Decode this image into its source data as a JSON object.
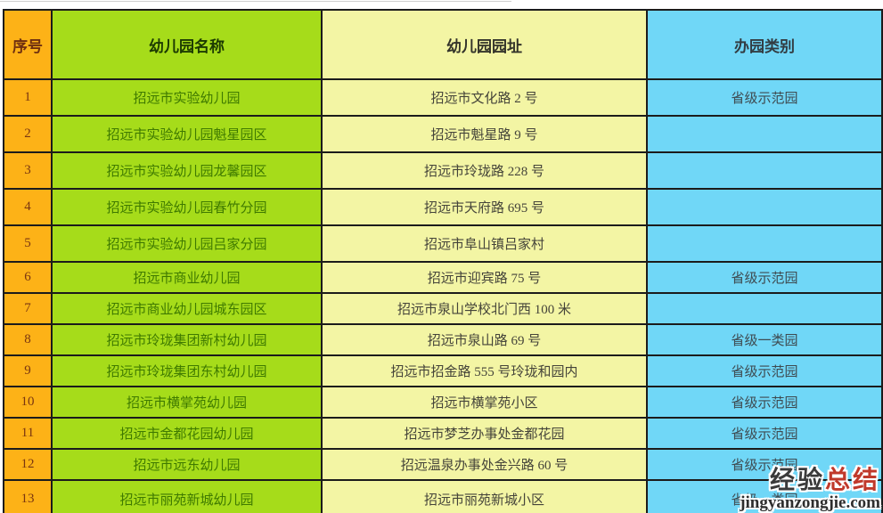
{
  "table": {
    "headers": [
      {
        "key": "no",
        "label": "序号"
      },
      {
        "key": "name",
        "label": "幼儿园名称"
      },
      {
        "key": "address",
        "label": "幼儿园园址"
      },
      {
        "key": "type",
        "label": "办园类别"
      }
    ],
    "rows": [
      {
        "no": "1",
        "name": "招远市实验幼儿园",
        "address": "招远市文化路 2 号",
        "type": "省级示范园"
      },
      {
        "no": "2",
        "name": "招远市实验幼儿园魁星园区",
        "address": "招远市魁星路 9 号",
        "type": ""
      },
      {
        "no": "3",
        "name": "招远市实验幼儿园龙馨园区",
        "address": "招远市玲珑路 228 号",
        "type": ""
      },
      {
        "no": "4",
        "name": "招远市实验幼儿园春竹分园",
        "address": "招远市天府路 695 号",
        "type": ""
      },
      {
        "no": "5",
        "name": "招远市实验幼儿园吕家分园",
        "address": "招远市阜山镇吕家村",
        "type": ""
      },
      {
        "no": "6",
        "name": "招远市商业幼儿园",
        "address": "招远市迎宾路 75 号",
        "type": "省级示范园"
      },
      {
        "no": "7",
        "name": "招远市商业幼儿园城东园区",
        "address": "招远市泉山学校北门西 100 米",
        "type": ""
      },
      {
        "no": "8",
        "name": "招远市玲珑集团新村幼儿园",
        "address": "招远市泉山路 69 号",
        "type": "省级一类园"
      },
      {
        "no": "9",
        "name": "招远市玲珑集团东村幼儿园",
        "address": "招远市招金路 555 号玲珑和园内",
        "type": "省级示范园"
      },
      {
        "no": "10",
        "name": "招远市横掌苑幼儿园",
        "address": "招远市横掌苑小区",
        "type": "省级示范园"
      },
      {
        "no": "11",
        "name": "招远市金都花园幼儿园",
        "address": "招远市梦芝办事处金都花园",
        "type": "省级示范园"
      },
      {
        "no": "12",
        "name": "招远市远东幼儿园",
        "address": "招远温泉办事处金兴路 60 号",
        "type": "省级示范园"
      },
      {
        "no": "13",
        "name": "招远市丽苑新城幼儿园",
        "address": "招远市丽苑新城小区",
        "type": "省级一类园"
      }
    ]
  },
  "watermark": {
    "title_part1": "经验",
    "title_part2": "总结",
    "url": "jingyanzongjie.com"
  },
  "colors": {
    "serial_bg": "#FDB217",
    "name_bg": "#A6DC1A",
    "address_bg": "#F3F5A4",
    "type_bg": "#70D7F7",
    "border": "#1b1b1b",
    "serial_text": "#7a3610",
    "name_text": "#3F7A00",
    "watermark_red": "#c0392b",
    "watermark_dark": "#3b3b3b"
  }
}
